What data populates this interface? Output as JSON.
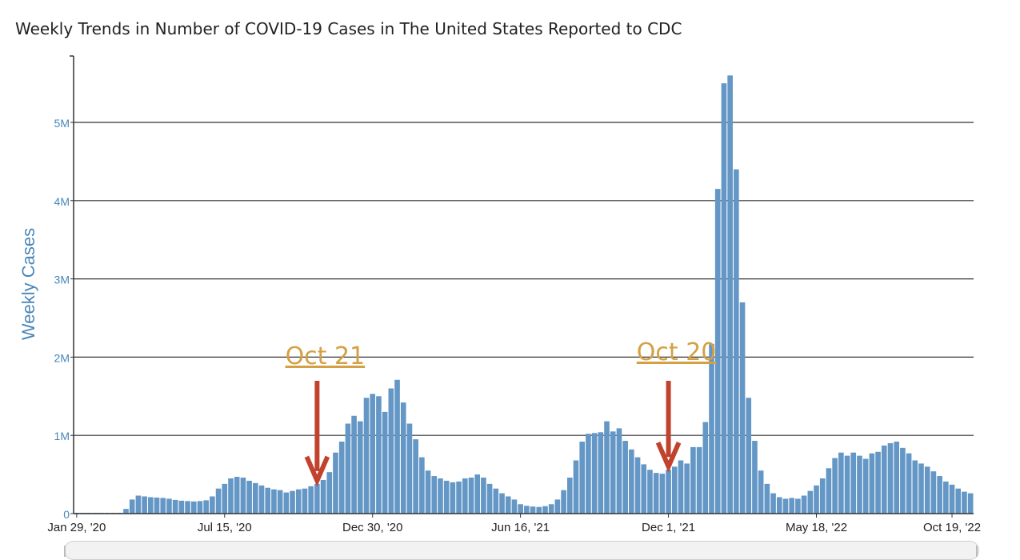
{
  "chart_data": {
    "type": "bar",
    "title": "Weekly Trends in Number of COVID-19 Cases in The United States Reported to CDC",
    "xlabel": "",
    "ylabel": "Weekly Cases",
    "ylim": [
      0,
      5800000
    ],
    "yticks": [
      {
        "value": 0,
        "label": "0"
      },
      {
        "value": 1000000,
        "label": "1M"
      },
      {
        "value": 2000000,
        "label": "2M"
      },
      {
        "value": 3000000,
        "label": "3M"
      },
      {
        "value": 4000000,
        "label": "4M"
      },
      {
        "value": 5000000,
        "label": "5M"
      }
    ],
    "xticks": [
      {
        "index": 0,
        "label": "Jan 29, '20"
      },
      {
        "index": 24,
        "label": "Jul 15, '20"
      },
      {
        "index": 48,
        "label": "Dec 30, '20"
      },
      {
        "index": 72,
        "label": "Jun 16, '21"
      },
      {
        "index": 96,
        "label": "Dec 1, '21"
      },
      {
        "index": 120,
        "label": "May 18, '22"
      },
      {
        "index": 142,
        "label": "Oct 19, '22"
      }
    ],
    "bar_color": "#6497c6",
    "values": [
      10000,
      10000,
      10000,
      10000,
      10000,
      10000,
      10000,
      10000,
      60000,
      180000,
      230000,
      220000,
      210000,
      205000,
      200000,
      190000,
      175000,
      165000,
      160000,
      155000,
      160000,
      170000,
      220000,
      320000,
      380000,
      450000,
      470000,
      460000,
      420000,
      390000,
      360000,
      330000,
      310000,
      300000,
      270000,
      290000,
      310000,
      320000,
      350000,
      380000,
      430000,
      530000,
      780000,
      920000,
      1150000,
      1250000,
      1180000,
      1480000,
      1530000,
      1500000,
      1300000,
      1600000,
      1710000,
      1420000,
      1150000,
      950000,
      720000,
      550000,
      480000,
      450000,
      420000,
      400000,
      410000,
      450000,
      460000,
      500000,
      460000,
      380000,
      320000,
      260000,
      220000,
      180000,
      120000,
      100000,
      90000,
      85000,
      95000,
      120000,
      180000,
      300000,
      460000,
      680000,
      920000,
      1020000,
      1030000,
      1040000,
      1180000,
      1050000,
      1090000,
      930000,
      820000,
      720000,
      630000,
      560000,
      520000,
      510000,
      560000,
      600000,
      680000,
      640000,
      850000,
      850000,
      1170000,
      2170000,
      4150000,
      5500000,
      5600000,
      4400000,
      2700000,
      1480000,
      930000,
      550000,
      380000,
      260000,
      210000,
      190000,
      200000,
      190000,
      230000,
      290000,
      360000,
      450000,
      580000,
      710000,
      780000,
      740000,
      780000,
      740000,
      700000,
      770000,
      790000,
      870000,
      900000,
      920000,
      840000,
      770000,
      680000,
      640000,
      600000,
      540000,
      480000,
      410000,
      370000,
      320000,
      280000,
      260000
    ],
    "annotations": [
      {
        "text": "Oct 21",
        "index": 39
      },
      {
        "text": "Oct 20",
        "index": 96
      }
    ],
    "annotation_text_color": "#d4a043",
    "arrow_color": "#c1432e"
  }
}
